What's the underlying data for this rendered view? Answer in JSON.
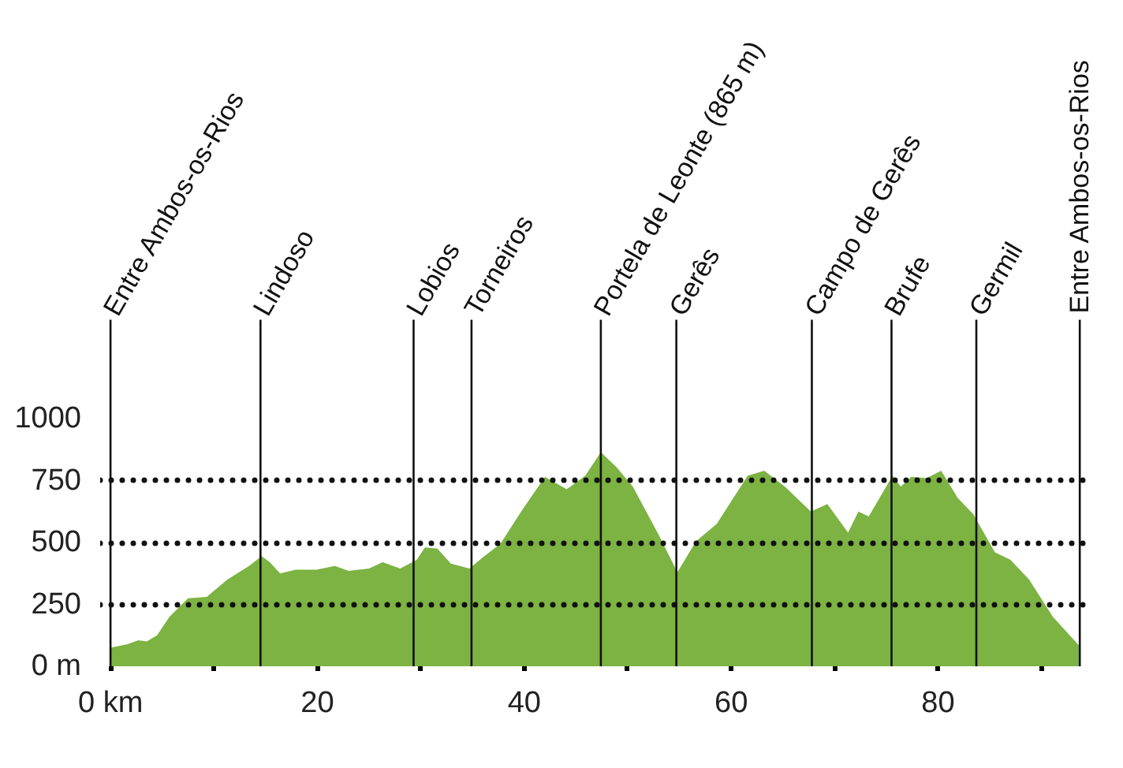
{
  "chart_data": {
    "type": "area",
    "x": [
      0,
      1.7,
      2.7,
      3.5,
      4.5,
      5.7,
      7.5,
      9.3,
      11.3,
      13.4,
      14.6,
      15.4,
      16.4,
      17.9,
      19.9,
      21.7,
      23,
      25,
      26.3,
      28,
      29.6,
      30.4,
      31.6,
      32.9,
      34.7,
      36,
      37.7,
      39.7,
      42,
      44.1,
      45.9,
      47.4,
      48.9,
      50.5,
      53,
      54.8,
      56.6,
      58.6,
      61.6,
      63.2,
      65.2,
      67.7,
      69.3,
      71.3,
      72.3,
      73.3,
      75.6,
      76.4,
      77.4,
      78.9,
      80.3,
      81.9,
      83.4,
      85.5,
      87,
      88.8,
      91.1,
      93.6
    ],
    "series": [
      {
        "color": "#7cb342",
        "values": [
          75,
          90,
          105,
          100,
          125,
          200,
          275,
          280,
          350,
          405,
          445,
          420,
          375,
          390,
          390,
          405,
          385,
          395,
          420,
          395,
          430,
          480,
          475,
          415,
          395,
          440,
          495,
          625,
          765,
          715,
          770,
          865,
          805,
          725,
          530,
          380,
          505,
          575,
          770,
          790,
          725,
          625,
          655,
          540,
          625,
          605,
          770,
          725,
          765,
          760,
          790,
          680,
          615,
          460,
          430,
          350,
          200,
          85
        ]
      }
    ],
    "xlim": [
      -1,
      94.6
    ],
    "ylim": [
      0,
      1000
    ],
    "xticks": [
      {
        "value": 0,
        "label": "0 km"
      },
      {
        "value": 10,
        "label": null
      },
      20,
      {
        "value": 30,
        "label": null
      },
      40,
      {
        "value": 50,
        "label": null
      },
      60,
      {
        "value": 70,
        "label": null
      },
      80,
      {
        "value": 90,
        "label": null
      }
    ],
    "yticks": [
      {
        "value": 0,
        "label": "0 m"
      },
      250,
      500,
      750,
      1000
    ],
    "grid": "y",
    "ref_lines": [
      {
        "axis": "x",
        "value": 0,
        "label": "Entre Ambos-os-Rios"
      },
      {
        "axis": "x",
        "value": 14.5,
        "label": "Lindoso"
      },
      {
        "axis": "x",
        "value": 29.3,
        "label": "Lobios"
      },
      {
        "axis": "x",
        "value": 34.9,
        "label": "Torneiros"
      },
      {
        "axis": "x",
        "value": 47.4,
        "label": "Portela de Leonte (865 m)"
      },
      {
        "axis": "x",
        "value": 54.7,
        "label": "Gerês"
      },
      {
        "axis": "x",
        "value": 67.8,
        "label": "Campo de Gerês"
      },
      {
        "axis": "x",
        "value": 75.5,
        "label": "Brufe"
      },
      {
        "axis": "x",
        "value": 83.7,
        "label": "Germil"
      },
      {
        "axis": "x",
        "value": 93.7,
        "label": "Entre Ambos-os-Rios"
      }
    ]
  }
}
